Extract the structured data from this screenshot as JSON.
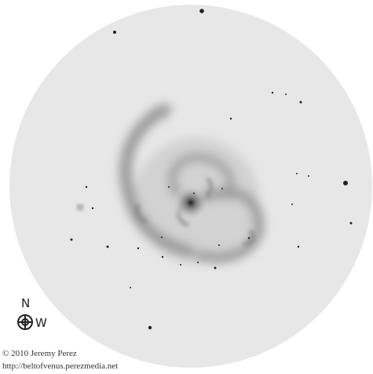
{
  "compass": {
    "north": "N",
    "west": "W"
  },
  "credit": {
    "copyright": "© 2010 Jeremy Perez",
    "url": "http://beltofvenus.perezmedia.net"
  }
}
